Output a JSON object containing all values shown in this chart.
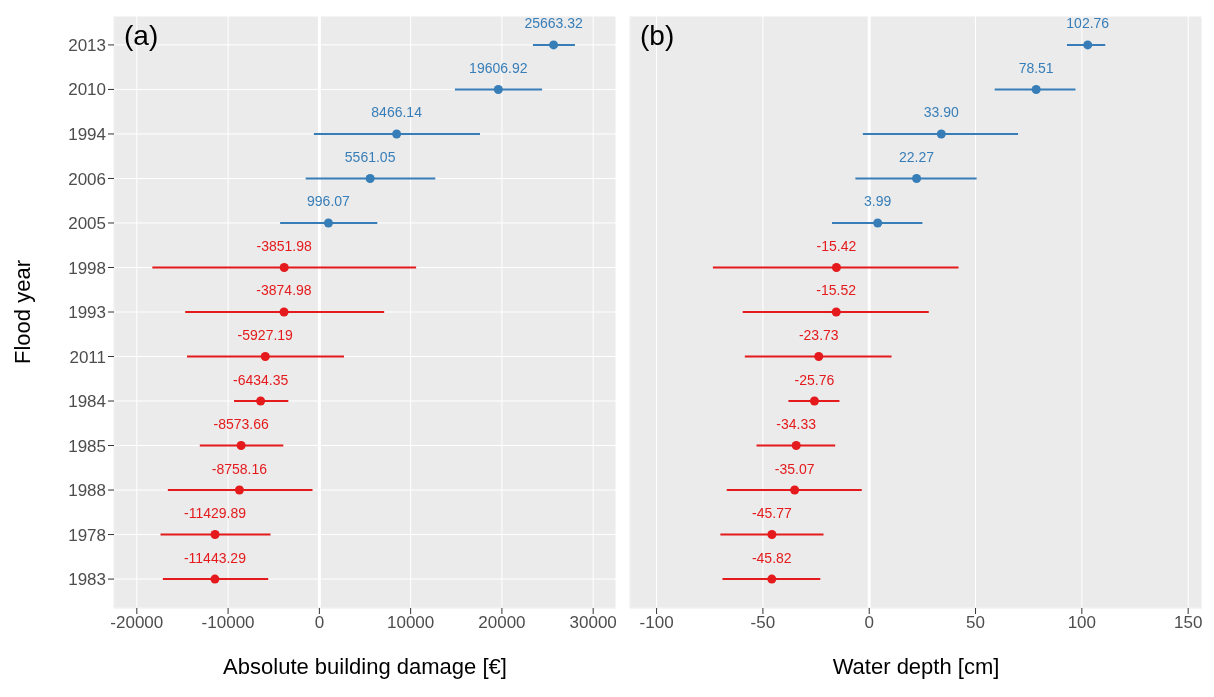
{
  "chart_data": [
    {
      "type": "scatter",
      "orientation": "horizontal",
      "title": "(a)",
      "xlabel": "Absolute building damage [€]",
      "ylabel": "Flood year",
      "categories": [
        "2013",
        "2010",
        "1994",
        "2006",
        "2005",
        "1998",
        "1993",
        "2011",
        "1984",
        "1985",
        "1988",
        "1978",
        "1983"
      ],
      "xlim": [
        -22500,
        32500
      ],
      "xticks": [
        -20000,
        -10000,
        0,
        10000,
        20000,
        30000
      ],
      "grid": true,
      "marker": "circle",
      "ref_lines": [
        {
          "axis": "x",
          "value": 0,
          "color": "#ffffff"
        }
      ],
      "series": [
        {
          "color": "#377eb8",
          "values": [
            25663.32,
            19606.92,
            8466.14,
            5561.05,
            996.07,
            null,
            null,
            null,
            null,
            null,
            null,
            null,
            null
          ],
          "value_labels": [
            "25663.32",
            "19606.92",
            "8466.14",
            "5561.05",
            "996.07",
            null,
            null,
            null,
            null,
            null,
            null,
            null,
            null
          ],
          "errors": [
            [
              23400,
              28000
            ],
            [
              14850,
              24400
            ],
            [
              -600,
              17600
            ],
            [
              -1500,
              12700
            ],
            [
              -4300,
              6350
            ],
            null,
            null,
            null,
            null,
            null,
            null,
            null,
            null
          ]
        },
        {
          "color": "#e41a1c",
          "values": [
            null,
            null,
            null,
            null,
            null,
            -3851.98,
            -3874.98,
            -5927.19,
            -6434.35,
            -8573.66,
            -8758.16,
            -11429.89,
            -11443.29
          ],
          "value_labels": [
            null,
            null,
            null,
            null,
            null,
            "-3851.98",
            "-3874.98",
            "-5927.19",
            "-6434.35",
            "-8573.66",
            "-8758.16",
            "-11429.89",
            "-11443.29"
          ],
          "errors": [
            null,
            null,
            null,
            null,
            null,
            [
              -18300,
              10600
            ],
            [
              -14700,
              7100
            ],
            [
              -14500,
              2700
            ],
            [
              -9350,
              -3400
            ],
            [
              -13100,
              -3950
            ],
            [
              -16600,
              -750
            ],
            [
              -17400,
              -5350
            ],
            [
              -17150,
              -5600
            ]
          ]
        }
      ]
    },
    {
      "type": "scatter",
      "orientation": "horizontal",
      "title": "(b)",
      "xlabel": "Water depth [cm]",
      "categories": [
        "2013",
        "2010",
        "1994",
        "2006",
        "2005",
        "1998",
        "1993",
        "2011",
        "1984",
        "1985",
        "1988",
        "1978",
        "1983"
      ],
      "xlim": [
        -112.5,
        156.5
      ],
      "xticks": [
        -100,
        -50,
        0,
        50,
        100,
        150
      ],
      "grid": true,
      "marker": "circle",
      "tick_labels": "x",
      "ref_lines": [
        {
          "axis": "x",
          "value": 0,
          "color": "#ffffff"
        }
      ],
      "series": [
        {
          "color": "#377eb8",
          "values": [
            102.76,
            78.51,
            33.9,
            22.27,
            3.99,
            null,
            null,
            null,
            null,
            null,
            null,
            null,
            null
          ],
          "value_labels": [
            "102.76",
            "78.51",
            "33.90",
            "22.27",
            "3.99",
            null,
            null,
            null,
            null,
            null,
            null,
            null,
            null
          ],
          "errors": [
            [
              93,
              111
            ],
            [
              59,
              97
            ],
            [
              -3,
              70
            ],
            [
              -6.5,
              50.5
            ],
            [
              -17.5,
              25
            ],
            null,
            null,
            null,
            null,
            null,
            null,
            null,
            null
          ]
        },
        {
          "color": "#e41a1c",
          "values": [
            null,
            null,
            null,
            null,
            null,
            -15.42,
            -15.52,
            -23.73,
            -25.76,
            -34.33,
            -35.07,
            -45.77,
            -45.82
          ],
          "value_labels": [
            null,
            null,
            null,
            null,
            null,
            "-15.42",
            "-15.52",
            "-23.73",
            "-25.76",
            "-34.33",
            "-35.07",
            "-45.77",
            "-45.82"
          ],
          "errors": [
            null,
            null,
            null,
            null,
            null,
            [
              -73.5,
              42
            ],
            [
              -59.5,
              28
            ],
            [
              -58.5,
              10.5
            ],
            [
              -38,
              -14
            ],
            [
              -53,
              -16
            ],
            [
              -67,
              -3.5
            ],
            [
              -70,
              -21.5
            ],
            [
              -69,
              -23
            ]
          ]
        }
      ]
    }
  ]
}
